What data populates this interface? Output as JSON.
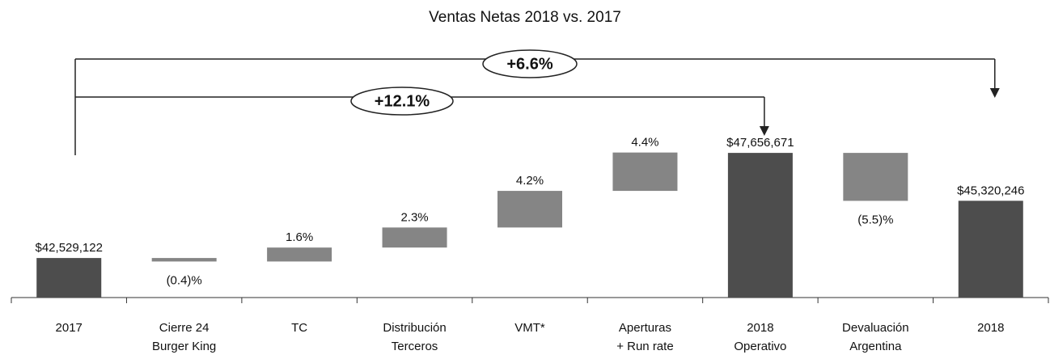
{
  "chart_data": {
    "type": "waterfall",
    "title": "Ventas Netas 2018 vs. 2017",
    "categories": [
      "2017",
      "Cierre 24\nBurger King",
      "TC",
      "Distribución\nTerceros",
      "VMT*",
      "Aperturas\n+ Run rate",
      "2018\nOperativo",
      "Devaluación\nArgentina",
      "2018"
    ],
    "measure": [
      "absolute",
      "relative",
      "relative",
      "relative",
      "relative",
      "relative",
      "absolute",
      "relative",
      "absolute"
    ],
    "values": [
      42529122,
      -0.4,
      1.6,
      2.3,
      4.2,
      4.4,
      47656671,
      -5.5,
      45320246
    ],
    "value_labels": [
      "$42,529,122",
      "(0.4)%",
      "1.6%",
      "2.3%",
      "4.2%",
      "4.4%",
      "$47,656,671",
      "(5.5)%",
      "$45,320,246"
    ],
    "total_color": "#4d4d4d",
    "step_color": "#858585",
    "ylim": [
      40600000,
      48000000
    ],
    "annotations": [
      "+6.6%",
      "+12.1%"
    ]
  }
}
